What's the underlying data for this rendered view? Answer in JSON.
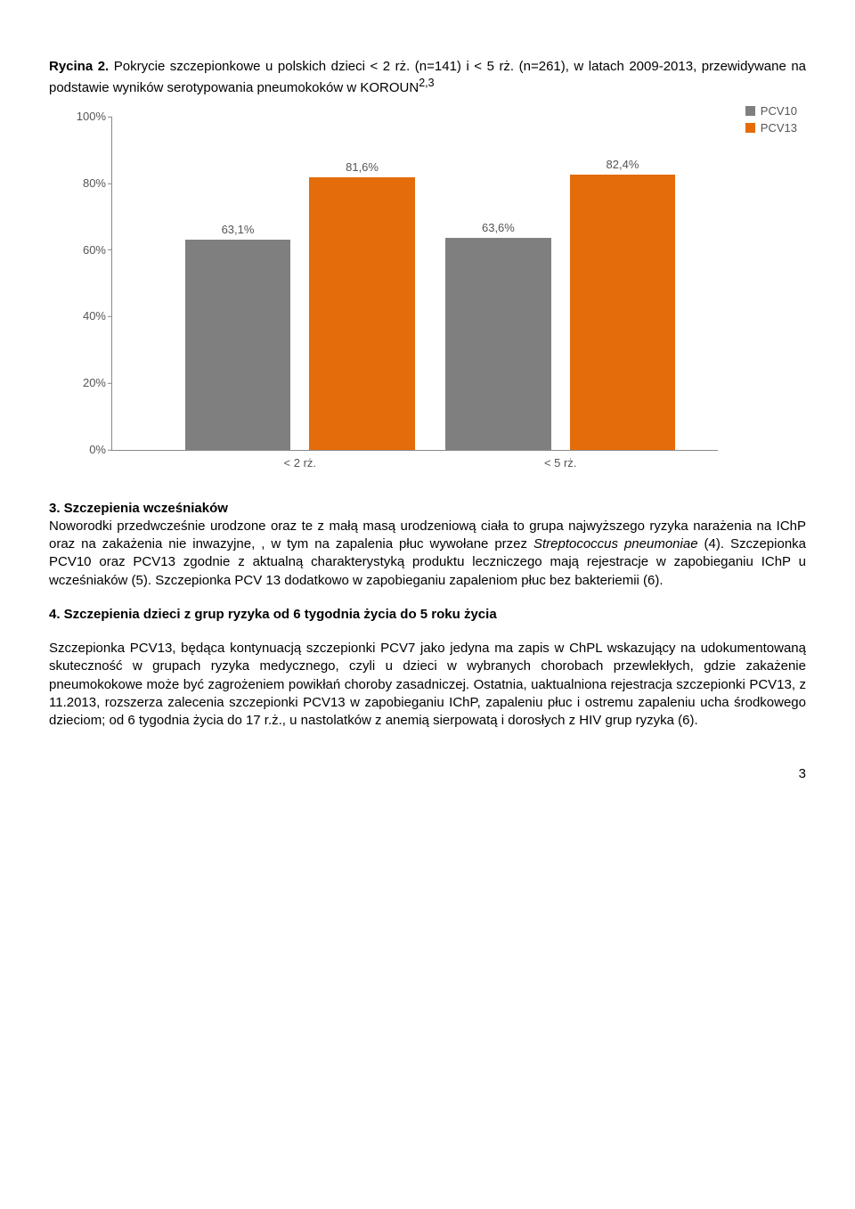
{
  "caption": {
    "label": "Rycina 2.",
    "text": "Pokrycie szczepionkowe u polskich dzieci < 2 rż. (n=141) i < 5 rż. (n=261), w latach 2009-2013, przewidywane na podstawie wyników serotypowania pneumokoków w KOROUN",
    "sup": "2,3"
  },
  "chart": {
    "type": "bar",
    "legend": [
      {
        "label": "PCV10",
        "color": "#7f7f7f"
      },
      {
        "label": "PCV13",
        "color": "#e46c0a"
      }
    ],
    "yticks": [
      "0%",
      "20%",
      "40%",
      "60%",
      "80%",
      "100%"
    ],
    "ylim": 100,
    "groups": [
      {
        "cat": "< 2 rż.",
        "left_pct": 12,
        "bars": [
          {
            "value": 63.1,
            "label": "63,1%",
            "color": "#7f7f7f"
          },
          {
            "value": 81.6,
            "label": "81,6%",
            "color": "#e46c0a"
          }
        ]
      },
      {
        "cat": "< 5 rż.",
        "left_pct": 55,
        "bars": [
          {
            "value": 63.6,
            "label": "63,6%",
            "color": "#7f7f7f"
          },
          {
            "value": 82.4,
            "label": "82,4%",
            "color": "#e46c0a"
          }
        ]
      }
    ]
  },
  "section3": {
    "heading": "3. Szczepienia wcześniaków",
    "body_a": "Noworodki przedwcześnie urodzone oraz te  z małą masą urodzeniową ciała  to grupa najwyższego ryzyka narażenia  na IChP oraz na  zakażenia nie inwazyjne, , w tym na zapalenia płuc wywołane przez ",
    "body_italic": "Streptococcus pneumoniae",
    "body_b": " (4). Szczepionka PCV10 oraz PCV13 zgodnie z aktualną charakterystyką produktu leczniczego mają rejestracje w zapobieganiu IChP u wcześniaków (5). Szczepionka PCV 13 dodatkowo w zapobieganiu zapaleniom płuc bez bakteriemii (6)."
  },
  "section4": {
    "heading": "4. Szczepienia dzieci z grup ryzyka od 6 tygodnia życia do 5 roku życia",
    "body": "Szczepionka PCV13, będąca kontynuacją szczepionki PCV7 jako jedyna ma zapis w ChPL wskazujący na udokumentowaną skuteczność w grupach ryzyka medycznego, czyli u dzieci w wybranych chorobach przewlekłych, gdzie zakażenie pneumokokowe może być zagrożeniem powikłań choroby zasadniczej. Ostatnia, uaktualniona rejestracja szczepionki PCV13, z 11.2013, rozszerza zalecenia  szczepionki PCV13 w zapobieganiu IChP, zapaleniu płuc i ostremu zapaleniu ucha środkowego dzieciom; od 6 tygodnia życia do 17 r.ż., u nastolatków z anemią sierpowatą i dorosłych z HIV grup ryzyka (6)."
  },
  "page": "3"
}
